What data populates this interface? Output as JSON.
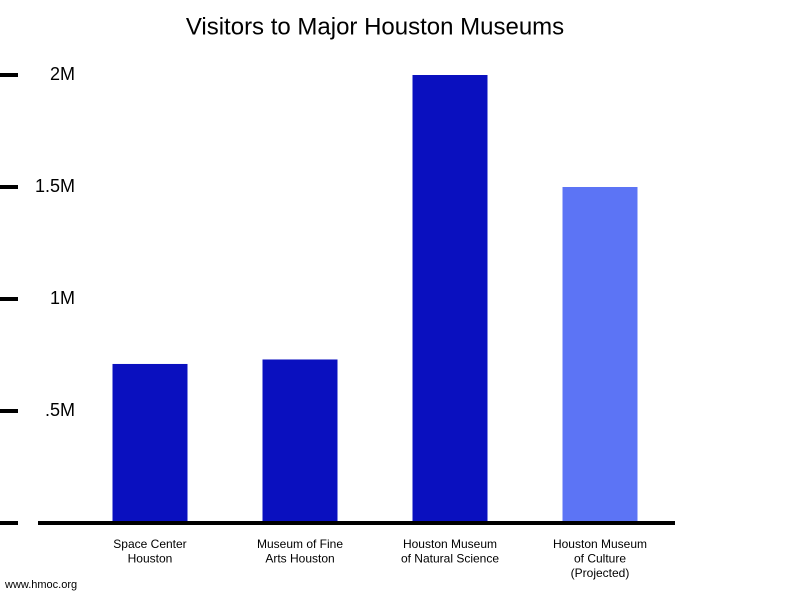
{
  "chart_data": {
    "type": "bar",
    "title": "Visitors to Major Houston Museums",
    "categories": [
      [
        "Space Center",
        "Houston"
      ],
      [
        "Museum of Fine",
        "Arts Houston"
      ],
      [
        "Houston Museum",
        "of Natural Science"
      ],
      [
        "Houston Museum",
        "of Culture",
        "(Projected)"
      ]
    ],
    "values": [
      710000,
      730000,
      2000000,
      1500000
    ],
    "colors": [
      "#0a10bf",
      "#0a10bf",
      "#0a10bf",
      "#5c74f5"
    ],
    "ylim": [
      0,
      2000000
    ],
    "yticks": [
      {
        "value": 500000,
        "label": ".5M"
      },
      {
        "value": 1000000,
        "label": "1M"
      },
      {
        "value": 1500000,
        "label": "1.5M"
      },
      {
        "value": 2000000,
        "label": "2M"
      }
    ],
    "source": "www.hmoc.org"
  }
}
